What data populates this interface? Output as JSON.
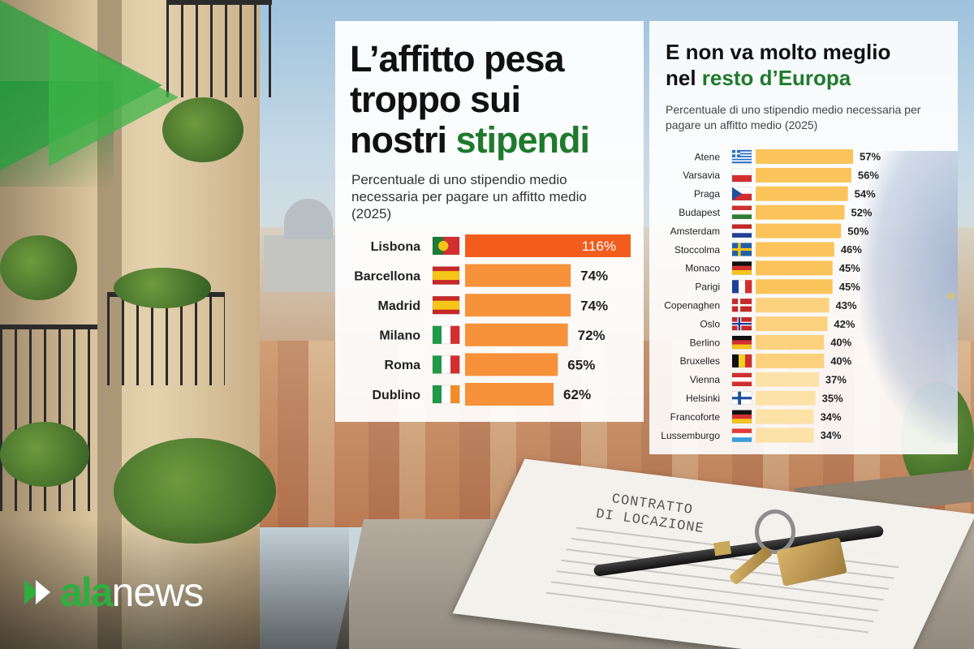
{
  "left": {
    "title_line1": "L’affitto pesa",
    "title_line2": "troppo sui",
    "title_line3_plain": "nostri ",
    "title_line3_highlight": "stipendi",
    "subtitle": "Percentuale di uno stipendio medio necessaria per pagare un affitto medio (2025)"
  },
  "right": {
    "title_line1": "E non va molto meglio",
    "title_line2_plain": "nel ",
    "title_line2_highlight": "resto d’Europa",
    "subtitle": "Percentuale di uno stipendio medio necessaria per pagare un affitto medio (2025)"
  },
  "background": {
    "contract_line1": "CONTRATTO",
    "contract_line2": "DI LOCAZIONE"
  },
  "logo": {
    "part1": "ala",
    "part2": "news"
  },
  "colors": {
    "accent_green": "#1f7a2c",
    "bar_top": "#f25d1e",
    "bar_orange": "#f7913a",
    "bar_yellow": "#fbc45a",
    "bar_pale": "#fde2a8"
  },
  "chart_data": [
    {
      "type": "bar",
      "orientation": "horizontal",
      "categories": [
        "Lisbona",
        "Barcellona",
        "Madrid",
        "Milano",
        "Roma",
        "Dublino"
      ],
      "flags": [
        "PT",
        "ES",
        "ES",
        "IT",
        "IT",
        "IE"
      ],
      "values": [
        116,
        74,
        74,
        72,
        65,
        62
      ],
      "value_suffix": "%",
      "xlim": [
        0,
        116
      ]
    },
    {
      "type": "bar",
      "orientation": "horizontal",
      "categories": [
        "Atene",
        "Varsavia",
        "Praga",
        "Budapest",
        "Amsterdam",
        "Stoccolma",
        "Monaco",
        "Parigi",
        "Copenaghen",
        "Oslo",
        "Berlino",
        "Bruxelles",
        "Vienna",
        "Helsinki",
        "Francoforte",
        "Lussemburgo"
      ],
      "flags": [
        "GR",
        "PL",
        "CZ",
        "HU",
        "NL",
        "SE",
        "DE",
        "FR",
        "DK",
        "NO",
        "DE",
        "BE",
        "AT",
        "FI",
        "DE",
        "LU"
      ],
      "values": [
        57,
        56,
        54,
        52,
        50,
        46,
        45,
        45,
        43,
        42,
        40,
        40,
        37,
        35,
        34,
        34
      ],
      "value_suffix": "%",
      "xlim": [
        0,
        57
      ]
    }
  ]
}
